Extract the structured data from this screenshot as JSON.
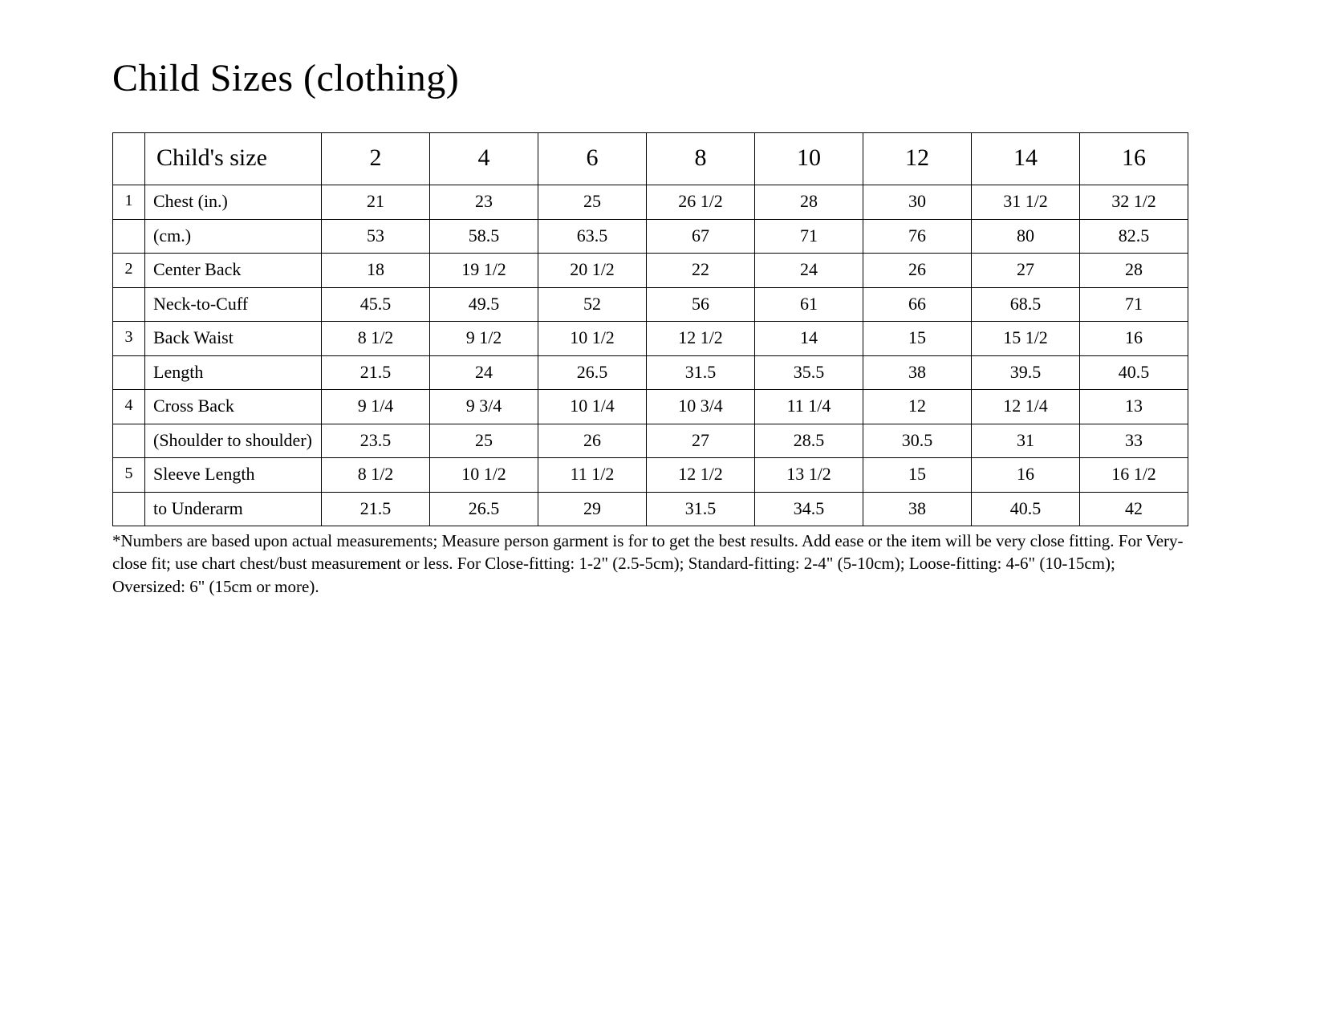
{
  "title": "Child Sizes (clothing)",
  "colors": {
    "background": "#ffffff",
    "text": "#000000",
    "border": "#000000"
  },
  "table": {
    "header_label": "Child's size",
    "size_columns": [
      "2",
      "4",
      "6",
      "8",
      "10",
      "12",
      "14",
      "16"
    ],
    "rows": [
      {
        "num": "1",
        "label": "Chest (in.)",
        "values": [
          "21",
          "23",
          "25",
          "26 1/2",
          "28",
          "30",
          "31 1/2",
          "32 1/2"
        ]
      },
      {
        "num": "",
        "label": "(cm.)",
        "values": [
          "53",
          "58.5",
          "63.5",
          "67",
          "71",
          "76",
          "80",
          "82.5"
        ]
      },
      {
        "num": "2",
        "label": "Center Back",
        "values": [
          "18",
          "19 1/2",
          "20 1/2",
          "22",
          "24",
          "26",
          "27",
          "28"
        ]
      },
      {
        "num": "",
        "label": "Neck-to-Cuff",
        "values": [
          "45.5",
          "49.5",
          "52",
          "56",
          "61",
          "66",
          "68.5",
          "71"
        ]
      },
      {
        "num": "3",
        "label": "Back Waist",
        "values": [
          "8 1/2",
          "9 1/2",
          "10 1/2",
          "12 1/2",
          "14",
          "15",
          "15 1/2",
          "16"
        ]
      },
      {
        "num": "",
        "label": "Length",
        "values": [
          "21.5",
          "24",
          "26.5",
          "31.5",
          "35.5",
          "38",
          "39.5",
          "40.5"
        ]
      },
      {
        "num": "4",
        "label": "Cross Back",
        "values": [
          "9 1/4",
          "9 3/4",
          "10 1/4",
          "10 3/4",
          "11 1/4",
          "12",
          "12 1/4",
          "13"
        ]
      },
      {
        "num": "",
        "label": "(Shoulder to shoulder)",
        "values": [
          "23.5",
          "25",
          "26",
          "27",
          "28.5",
          "30.5",
          "31",
          "33"
        ]
      },
      {
        "num": "5",
        "label": "Sleeve Length",
        "values": [
          "8 1/2",
          "10 1/2",
          "11 1/2",
          "12 1/2",
          "13 1/2",
          "15",
          "16",
          "16 1/2"
        ]
      },
      {
        "num": "",
        "label": "to Underarm",
        "values": [
          "21.5",
          "26.5",
          "29",
          "31.5",
          "34.5",
          "38",
          "40.5",
          "42"
        ]
      }
    ]
  },
  "footnote": "*Numbers are based upon actual measurements; Measure person garment is for to get the best results.  Add ease or the item will be very close fitting. For Very-close fit; use chart chest/bust measurement or less.  For Close-fitting: 1-2\" (2.5-5cm); Standard-fitting: 2-4\" (5-10cm); Loose-fitting: 4-6\" (10-15cm); Oversized: 6\" (15cm or more)."
}
